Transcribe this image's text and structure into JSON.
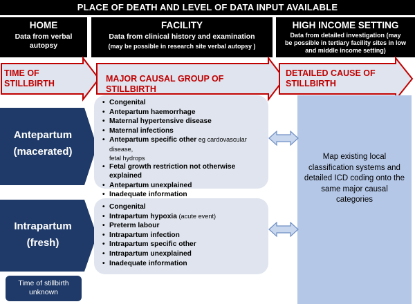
{
  "banner": "PLACE OF DEATH AND LEVEL OF DATA INPUT AVAILABLE",
  "columns": [
    {
      "title": "HOME",
      "lines": [
        "Data from verbal",
        "autopsy"
      ]
    },
    {
      "title": "FACILITY",
      "lines": [
        "Data from clinical history and examination"
      ],
      "sub": "(may be possible in research site verbal autopsy )"
    },
    {
      "title": "HIGH INCOME SETTING",
      "lines": [
        "Data from detailed investigation (may",
        "be possible in tertiary  facility sites in low",
        "and middle income setting)"
      ]
    }
  ],
  "arrows": {
    "time": [
      "TIME OF",
      "STILLBIRTH"
    ],
    "major": "MAJOR CAUSAL GROUP OF STILLBIRTH",
    "detailed": [
      "DETAILED CAUSE   OF",
      "STILLBIRTH"
    ]
  },
  "stages": {
    "antepartum": [
      "Antepartum",
      "(macerated)"
    ],
    "intrapartum": [
      "Intrapartum",
      "(fresh)"
    ],
    "unknown": [
      "Time of stillbirth",
      "unknown"
    ]
  },
  "antepartum_causes": [
    {
      "label": "Congenital"
    },
    {
      "label": "Antepartum haemorrhage"
    },
    {
      "label": "Maternal hypertensive disease"
    },
    {
      "label": "Maternal infections"
    },
    {
      "label": "Antepartum specific other",
      "note": " eg cardovascular disease,",
      "note2": "fetal hydrops"
    },
    {
      "label": "Fetal growth restriction not otherwise explained"
    },
    {
      "label": "Antepartum unexplained"
    },
    {
      "label": "Inadequate information"
    }
  ],
  "intrapartum_causes": [
    {
      "label": "Congenital"
    },
    {
      "label": "Intrapartum hypoxia",
      "note": " (acute event)"
    },
    {
      "label": "Preterm labour"
    },
    {
      "label": "Intrapartum infection"
    },
    {
      "label": "Intrapartum specific other"
    },
    {
      "label": "Intrapartum unexplained"
    },
    {
      "label": "Inadequate information"
    }
  ],
  "right_text": [
    "Map existing local",
    "classification systems and",
    "detailed ICD coding onto the",
    "same major causal",
    "categories"
  ],
  "colors": {
    "dark_blue": "#1f3a68",
    "arrow_red": "#c00000",
    "light_blue": "#b4c7e7",
    "list_bg": "#dfe4ee"
  }
}
